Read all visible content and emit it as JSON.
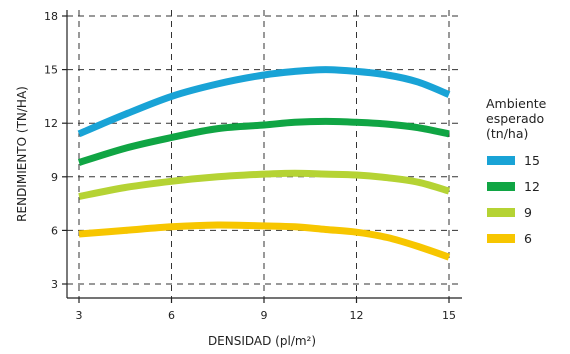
{
  "chart_data": {
    "type": "line",
    "title": "",
    "xlabel": "DENSIDAD (pl/m²)",
    "ylabel": "RENDIMIENTO (TN/HA)",
    "xlim": [
      3,
      15
    ],
    "ylim": [
      3,
      18
    ],
    "x_ticks": [
      3,
      6,
      9,
      12,
      15
    ],
    "y_ticks": [
      3,
      6,
      9,
      12,
      15,
      18
    ],
    "grid": true,
    "legend": {
      "title_lines": [
        "Ambiente",
        "esperado",
        "(tn/ha)"
      ],
      "placement": "right"
    },
    "series": [
      {
        "name": "15",
        "color": "#19a3d6",
        "points": [
          [
            3,
            11.4
          ],
          [
            4.5,
            12.5
          ],
          [
            6,
            13.5
          ],
          [
            7.5,
            14.2
          ],
          [
            9,
            14.7
          ],
          [
            10,
            14.9
          ],
          [
            11,
            15.0
          ],
          [
            12,
            14.9
          ],
          [
            13,
            14.7
          ],
          [
            14,
            14.3
          ],
          [
            15,
            13.6
          ]
        ]
      },
      {
        "name": "12",
        "color": "#10a544",
        "points": [
          [
            3,
            9.8
          ],
          [
            4.5,
            10.6
          ],
          [
            6,
            11.2
          ],
          [
            7.5,
            11.7
          ],
          [
            9,
            11.9
          ],
          [
            10,
            12.05
          ],
          [
            11,
            12.1
          ],
          [
            12,
            12.05
          ],
          [
            13,
            11.95
          ],
          [
            14,
            11.75
          ],
          [
            15,
            11.4
          ]
        ]
      },
      {
        "name": "9",
        "color": "#b5d334",
        "points": [
          [
            3,
            7.9
          ],
          [
            4.5,
            8.4
          ],
          [
            6,
            8.75
          ],
          [
            7.5,
            9.0
          ],
          [
            9,
            9.15
          ],
          [
            10,
            9.2
          ],
          [
            11,
            9.15
          ],
          [
            12,
            9.1
          ],
          [
            13,
            8.95
          ],
          [
            14,
            8.7
          ],
          [
            15,
            8.2
          ]
        ]
      },
      {
        "name": "6",
        "color": "#f7c600",
        "points": [
          [
            3,
            5.8
          ],
          [
            4.5,
            6.0
          ],
          [
            6,
            6.2
          ],
          [
            7.5,
            6.3
          ],
          [
            9,
            6.25
          ],
          [
            10,
            6.2
          ],
          [
            11,
            6.05
          ],
          [
            12,
            5.9
          ],
          [
            13,
            5.6
          ],
          [
            14,
            5.1
          ],
          [
            15,
            4.5
          ]
        ]
      }
    ]
  }
}
